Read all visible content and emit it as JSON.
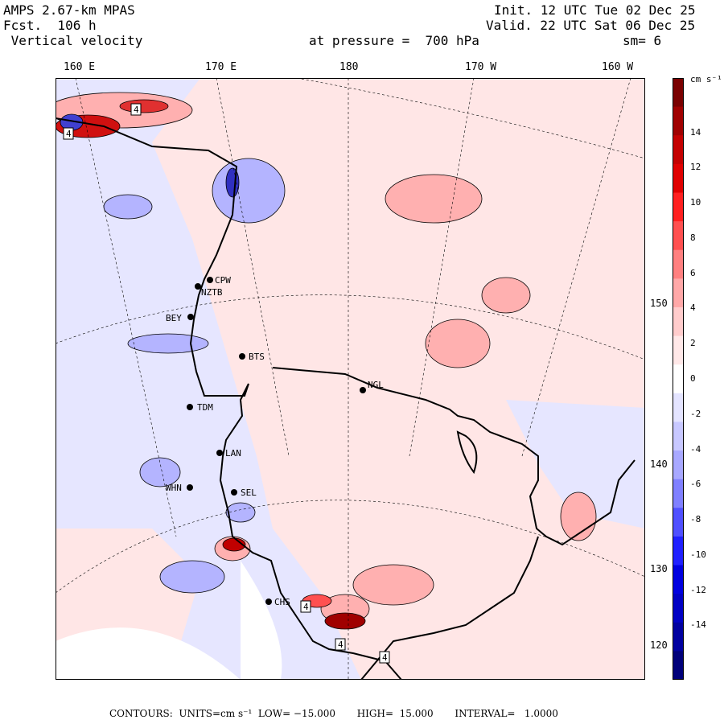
{
  "header": {
    "model": "AMPS 2.67-km MPAS",
    "forecast": "Fcst.  106 h",
    "field": " Vertical velocity",
    "init": "Init. 12 UTC Tue 02 Dec 25",
    "valid": "Valid. 22 UTC Sat 06 Dec 25",
    "level": "at pressure =  700 hPa",
    "smooth": "sm= 6"
  },
  "lon_labels": [
    "160 E",
    "170 E",
    "180",
    "170 W",
    "160 W"
  ],
  "lat_labels": [
    "150 W",
    "140 W",
    "130 W",
    "120 W"
  ],
  "colorbar": {
    "units": "cm s⁻¹",
    "ticks": [
      "14",
      "12",
      "10",
      "8",
      "6",
      "4",
      "2",
      "0",
      "-2",
      "-4",
      "-6",
      "-8",
      "-10",
      "-12",
      "-14"
    ],
    "colors": [
      "#7a0000",
      "#a00000",
      "#c40000",
      "#e00000",
      "#ff2020",
      "#ff5050",
      "#ff8080",
      "#ffa8a8",
      "#ffcccc",
      "#ffe8e8",
      "#ffffff",
      "#e4e4ff",
      "#c8c8ff",
      "#a8a8ff",
      "#8080ff",
      "#5050ff",
      "#2020ff",
      "#0000e0",
      "#0000c4",
      "#0000a0",
      "#00007a"
    ]
  },
  "stations": [
    {
      "code": "CPW"
    },
    {
      "code": "NZTB"
    },
    {
      "code": "BEY"
    },
    {
      "code": "BTS"
    },
    {
      "code": "NGL"
    },
    {
      "code": "TDM"
    },
    {
      "code": "LAN"
    },
    {
      "code": "WHN"
    },
    {
      "code": "SEL"
    },
    {
      "code": "CHS"
    }
  ],
  "contour_labels": [
    "4",
    "4",
    "4",
    "4",
    "4"
  ],
  "footer": {
    "contours": "CONTOURS:",
    "units": "UNITS=cm s⁻¹",
    "low": "LOW= −15.000",
    "high": "HIGH=  15.000",
    "interval": "INTERVAL=   1.0000"
  },
  "colors": {
    "positive_light": "#ffe6e6",
    "positive_mid": "#ffb0b0",
    "negative_light": "#e6e6ff",
    "negative_mid": "#b4b4ff",
    "land_ice": "#ffffff"
  }
}
